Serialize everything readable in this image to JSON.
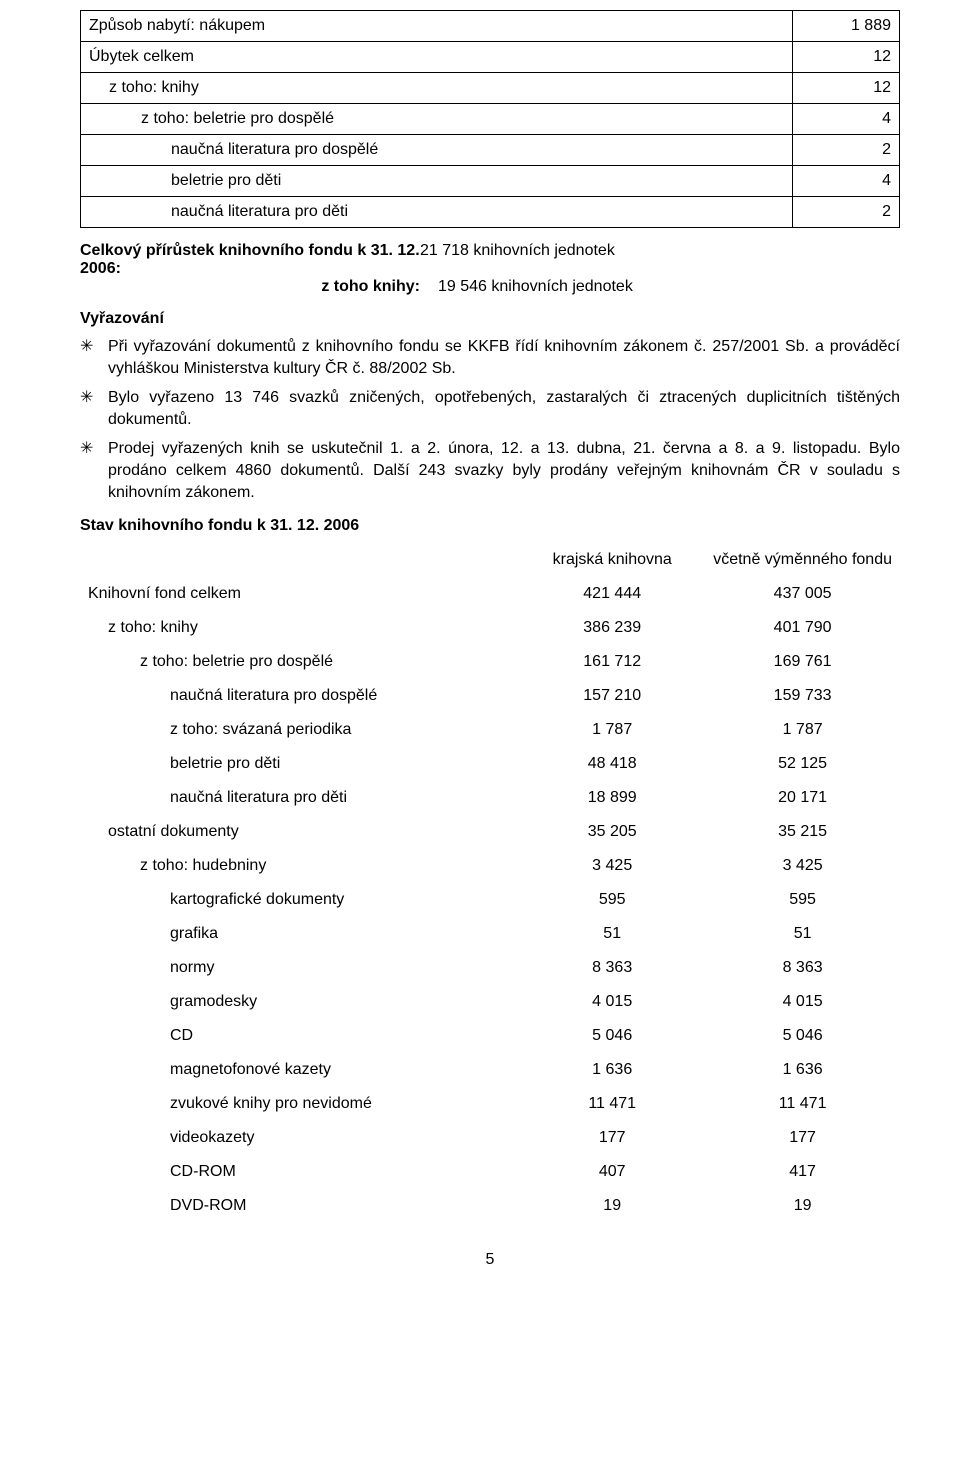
{
  "table1": {
    "rows": [
      {
        "label": "Způsob nabytí:  nákupem",
        "value": "1 889",
        "pad": 0
      },
      {
        "label": "Úbytek celkem",
        "value": "12",
        "pad": 0
      },
      {
        "label": "z toho: knihy",
        "value": "12",
        "pad": 1
      },
      {
        "label": "z toho: beletrie pro dospělé",
        "value": "4",
        "pad": 2
      },
      {
        "label": "naučná literatura pro dospělé",
        "value": "2",
        "pad": 3
      },
      {
        "label": "beletrie pro děti",
        "value": "4",
        "pad": 3
      },
      {
        "label": "naučná literatura pro děti",
        "value": "2",
        "pad": 3
      }
    ]
  },
  "growth": {
    "line1_left": "Celkový přírůstek knihovního fondu k 31. 12. 2006:",
    "line1_right": "21 718 knihovních jednotek",
    "line2_left": "z toho knihy:",
    "line2_right": "19 546 knihovních jednotek"
  },
  "vyrazovani_heading": "Vyřazování",
  "bullets": [
    "Při vyřazování dokumentů z knihovního fondu se KKFB řídí knihovním zákonem č. 257/2001 Sb. a prováděcí vyhláškou Ministerstva kultury ČR č. 88/2002 Sb.",
    "Bylo vyřazeno 13 746 svazků zničených, opotřebených, zastaralých či ztracených duplicitních tištěných dokumentů.",
    "Prodej vyřazených knih se uskutečnil 1. a 2. února, 12. a 13. dubna, 21. června a 8. a 9. listopadu. Bylo prodáno celkem 4860 dokumentů. Další 243 svazky byly prodány veřejným knihovnám ČR v souladu s knihovním zákonem."
  ],
  "stav_heading": "Stav knihovního fondu k 31. 12. 2006",
  "table2": {
    "head": [
      "",
      "krajská knihovna",
      "včetně výměnného fondu"
    ],
    "rows": [
      {
        "label": "Knihovní fond celkem",
        "v1": "421 444",
        "v2": "437 005",
        "pad": 0
      },
      {
        "label": "z toho: knihy",
        "v1": "386 239",
        "v2": "401 790",
        "pad": 1
      },
      {
        "label": "z toho: beletrie pro dospělé",
        "v1": "161 712",
        "v2": "169 761",
        "pad": 2
      },
      {
        "label": "naučná literatura pro dospělé",
        "v1": "157 210",
        "v2": "159 733",
        "pad": 3
      },
      {
        "label": "z toho: svázaná periodika",
        "v1": "1 787",
        "v2": "1 787",
        "pad": 3
      },
      {
        "label": "beletrie pro děti",
        "v1": "48 418",
        "v2": "52 125",
        "pad": 3
      },
      {
        "label": "naučná literatura pro děti",
        "v1": "18 899",
        "v2": "20 171",
        "pad": 3
      },
      {
        "label": "ostatní dokumenty",
        "v1": "35 205",
        "v2": "35 215",
        "pad": 1
      },
      {
        "label": "z toho: hudebniny",
        "v1": "3 425",
        "v2": "3 425",
        "pad": 2
      },
      {
        "label": "kartografické dokumenty",
        "v1": "595",
        "v2": "595",
        "pad": 3
      },
      {
        "label": "grafika",
        "v1": "51",
        "v2": "51",
        "pad": 3
      },
      {
        "label": "normy",
        "v1": "8 363",
        "v2": "8 363",
        "pad": 3
      },
      {
        "label": "gramodesky",
        "v1": "4 015",
        "v2": "4 015",
        "pad": 3
      },
      {
        "label": "CD",
        "v1": "5 046",
        "v2": "5 046",
        "pad": 3
      },
      {
        "label": "magnetofonové kazety",
        "v1": "1 636",
        "v2": "1 636",
        "pad": 3
      },
      {
        "label": "zvukové knihy pro nevidomé",
        "v1": "11 471",
        "v2": "11 471",
        "pad": 3
      },
      {
        "label": "videokazety",
        "v1": "177",
        "v2": "177",
        "pad": 3
      },
      {
        "label": "CD-ROM",
        "v1": "407",
        "v2": "417",
        "pad": 3
      },
      {
        "label": "DVD-ROM",
        "v1": "19",
        "v2": "19",
        "pad": 3
      }
    ]
  },
  "page_number": "5",
  "bullet_marker": "✳"
}
